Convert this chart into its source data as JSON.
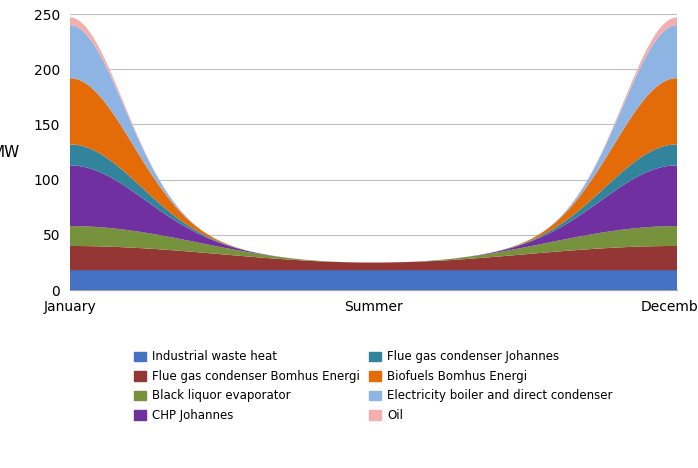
{
  "x_labels": [
    "January",
    "Summer",
    "December"
  ],
  "x_ticks": [
    0,
    50,
    100
  ],
  "ylabel": "MW",
  "ylim": [
    0,
    250
  ],
  "yticks": [
    0,
    50,
    100,
    150,
    200,
    250
  ],
  "series": [
    {
      "name": "Industrial waste heat",
      "color": "#4472C4",
      "values": [
        18,
        18,
        18
      ],
      "sharpness": 1
    },
    {
      "name": "Flue gas condenser Bomhus Energi",
      "color": "#943634",
      "values": [
        22,
        7,
        22
      ],
      "sharpness": 2
    },
    {
      "name": "Black liquor evaporator",
      "color": "#76923C",
      "values": [
        18,
        0,
        18
      ],
      "sharpness": 3
    },
    {
      "name": "CHP Johannes",
      "color": "#7030A0",
      "values": [
        55,
        0,
        55
      ],
      "sharpness": 8
    },
    {
      "name": "Flue gas condenser Johannes",
      "color": "#31849B",
      "values": [
        19,
        0,
        19
      ],
      "sharpness": 10
    },
    {
      "name": "Biofuels Bomhus Energi",
      "color": "#E36C09",
      "values": [
        60,
        0,
        60
      ],
      "sharpness": 12
    },
    {
      "name": "Electricity boiler and direct condenser",
      "color": "#8EB4E3",
      "values": [
        48,
        0,
        48
      ],
      "sharpness": 20
    },
    {
      "name": "Oil",
      "color": "#F2AFAD",
      "values": [
        7,
        0,
        7
      ],
      "sharpness": 25
    }
  ],
  "background_color": "#FFFFFF",
  "grid_color": "#C0C0C0",
  "num_points": 201
}
